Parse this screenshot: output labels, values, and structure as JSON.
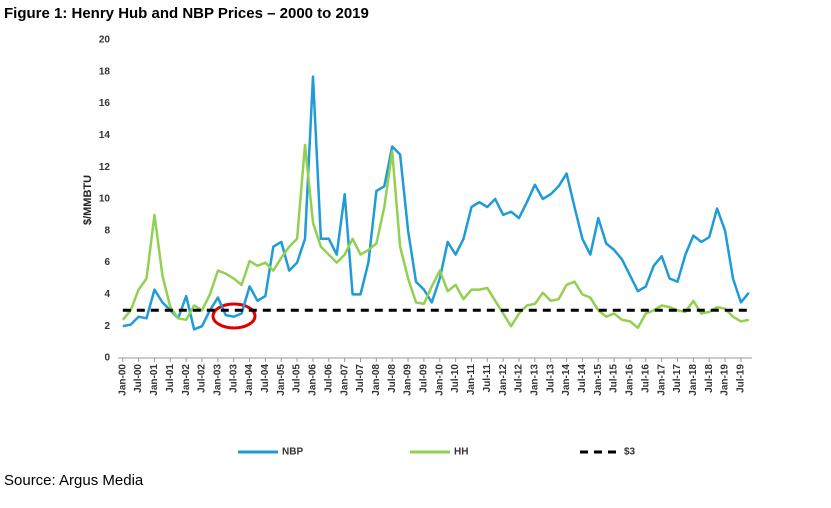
{
  "chart_data": {
    "type": "line",
    "title": "Figure 1: Henry Hub and NBP Prices – 2000 to 2019",
    "ylabel": "$/MMBTU",
    "source": "Source: Argus Media",
    "x": [
      2000,
      2000.25,
      2000.5,
      2000.75,
      2001,
      2001.25,
      2001.5,
      2001.75,
      2002,
      2002.25,
      2002.5,
      2002.75,
      2003,
      2003.25,
      2003.5,
      2003.75,
      2004,
      2004.25,
      2004.5,
      2004.75,
      2005,
      2005.25,
      2005.5,
      2005.75,
      2006,
      2006.25,
      2006.5,
      2006.75,
      2007,
      2007.25,
      2007.5,
      2007.75,
      2008,
      2008.25,
      2008.5,
      2008.75,
      2009,
      2009.25,
      2009.5,
      2009.75,
      2010,
      2010.25,
      2010.5,
      2010.75,
      2011,
      2011.25,
      2011.5,
      2011.75,
      2012,
      2012.25,
      2012.5,
      2012.75,
      2013,
      2013.25,
      2013.5,
      2013.75,
      2014,
      2014.25,
      2014.5,
      2014.75,
      2015,
      2015.25,
      2015.5,
      2015.75,
      2016,
      2016.25,
      2016.5,
      2016.75,
      2017,
      2017.25,
      2017.5,
      2017.75,
      2018,
      2018.25,
      2018.5,
      2018.75,
      2019,
      2019.25,
      2019.5,
      2019.75
    ],
    "series": [
      {
        "name": "NBP",
        "color": "#1f9bd7",
        "dash": false,
        "values": [
          2.0,
          2.1,
          2.6,
          2.5,
          4.3,
          3.5,
          3.0,
          2.5,
          3.9,
          1.8,
          2.0,
          3.0,
          3.8,
          2.7,
          2.6,
          2.8,
          4.5,
          3.6,
          3.9,
          7.0,
          7.3,
          5.5,
          6.0,
          7.5,
          17.7,
          7.5,
          7.5,
          6.5,
          10.3,
          4.0,
          4.0,
          6.0,
          10.5,
          10.8,
          13.3,
          12.8,
          8.0,
          4.8,
          4.3,
          3.5,
          5.0,
          7.3,
          6.5,
          7.5,
          9.5,
          9.8,
          9.5,
          10.0,
          9.0,
          9.2,
          8.8,
          9.8,
          10.9,
          10.0,
          10.3,
          10.8,
          11.6,
          9.5,
          7.5,
          6.5,
          8.8,
          7.2,
          6.8,
          6.2,
          5.2,
          4.2,
          4.5,
          5.8,
          6.4,
          5.0,
          4.8,
          6.5,
          7.7,
          7.3,
          7.6,
          9.4,
          8.0,
          5.0,
          3.5,
          4.1
        ]
      },
      {
        "name": "HH",
        "color": "#92d050",
        "dash": false,
        "values": [
          2.4,
          3.0,
          4.3,
          5.0,
          9.0,
          5.2,
          3.2,
          2.5,
          2.4,
          3.3,
          3.0,
          4.0,
          5.5,
          5.3,
          5.0,
          4.6,
          6.1,
          5.8,
          6.0,
          5.5,
          6.3,
          7.0,
          7.5,
          13.4,
          8.5,
          7.0,
          6.5,
          6.0,
          6.5,
          7.5,
          6.5,
          6.8,
          7.2,
          9.5,
          13.0,
          7.0,
          5.0,
          3.5,
          3.4,
          4.5,
          5.5,
          4.2,
          4.6,
          3.7,
          4.3,
          4.3,
          4.4,
          3.6,
          2.8,
          2.0,
          2.8,
          3.3,
          3.4,
          4.1,
          3.6,
          3.7,
          4.6,
          4.8,
          4.0,
          3.8,
          3.0,
          2.6,
          2.8,
          2.4,
          2.3,
          1.9,
          2.8,
          3.0,
          3.3,
          3.2,
          3.0,
          2.9,
          3.6,
          2.8,
          2.9,
          3.2,
          3.1,
          2.6,
          2.3,
          2.4
        ]
      },
      {
        "name": "$3",
        "color": "#000000",
        "dash": true,
        "values": [
          3,
          3,
          3,
          3,
          3,
          3,
          3,
          3,
          3,
          3,
          3,
          3,
          3,
          3,
          3,
          3,
          3,
          3,
          3,
          3,
          3,
          3,
          3,
          3,
          3,
          3,
          3,
          3,
          3,
          3,
          3,
          3,
          3,
          3,
          3,
          3,
          3,
          3,
          3,
          3,
          3,
          3,
          3,
          3,
          3,
          3,
          3,
          3,
          3,
          3,
          3,
          3,
          3,
          3,
          3,
          3,
          3,
          3,
          3,
          3,
          3,
          3,
          3,
          3,
          3,
          3,
          3,
          3,
          3,
          3,
          3,
          3,
          3,
          3,
          3,
          3,
          3,
          3,
          3,
          3
        ]
      }
    ],
    "xlim": [
      1999.85,
      2019.85
    ],
    "xticks": [
      {
        "value": 2000,
        "label": "Jan-00"
      },
      {
        "value": 2000.5,
        "label": "Jul-00"
      },
      {
        "value": 2001,
        "label": "Jan-01"
      },
      {
        "value": 2001.5,
        "label": "Jul-01"
      },
      {
        "value": 2002,
        "label": "Jan-02"
      },
      {
        "value": 2002.5,
        "label": "Jul-02"
      },
      {
        "value": 2003,
        "label": "Jan-03"
      },
      {
        "value": 2003.5,
        "label": "Jul-03"
      },
      {
        "value": 2004,
        "label": "Jan-04"
      },
      {
        "value": 2004.5,
        "label": "Jul-04"
      },
      {
        "value": 2005,
        "label": "Jan-05"
      },
      {
        "value": 2005.5,
        "label": "Jul-05"
      },
      {
        "value": 2006,
        "label": "Jan-06"
      },
      {
        "value": 2006.5,
        "label": "Jul-06"
      },
      {
        "value": 2007,
        "label": "Jan-07"
      },
      {
        "value": 2007.5,
        "label": "Jul-07"
      },
      {
        "value": 2008,
        "label": "Jan-08"
      },
      {
        "value": 2008.5,
        "label": "Jul-08"
      },
      {
        "value": 2009,
        "label": "Jan-09"
      },
      {
        "value": 2009.5,
        "label": "Jul-09"
      },
      {
        "value": 2010,
        "label": "Jan-10"
      },
      {
        "value": 2010.5,
        "label": "Jul-10"
      },
      {
        "value": 2011,
        "label": "Jan-11"
      },
      {
        "value": 2011.5,
        "label": "Jul-11"
      },
      {
        "value": 2012,
        "label": "Jan-12"
      },
      {
        "value": 2012.5,
        "label": "Jul-12"
      },
      {
        "value": 2013,
        "label": "Jan-13"
      },
      {
        "value": 2013.5,
        "label": "Jul-13"
      },
      {
        "value": 2014,
        "label": "Jan-14"
      },
      {
        "value": 2014.5,
        "label": "Jul-14"
      },
      {
        "value": 2015,
        "label": "Jan-15"
      },
      {
        "value": 2015.5,
        "label": "Jul-15"
      },
      {
        "value": 2016,
        "label": "Jan-16"
      },
      {
        "value": 2016.5,
        "label": "Jul-16"
      },
      {
        "value": 2017,
        "label": "Jan-17"
      },
      {
        "value": 2017.5,
        "label": "Jul-17"
      },
      {
        "value": 2018,
        "label": "Jan-18"
      },
      {
        "value": 2018.5,
        "label": "Jul-18"
      },
      {
        "value": 2019,
        "label": "Jan-19"
      },
      {
        "value": 2019.5,
        "label": "Jul-19"
      }
    ],
    "ylim": [
      0,
      20
    ],
    "yticks": [
      0,
      2,
      4,
      6,
      8,
      10,
      12,
      14,
      16,
      18,
      20
    ],
    "grid": false
  }
}
